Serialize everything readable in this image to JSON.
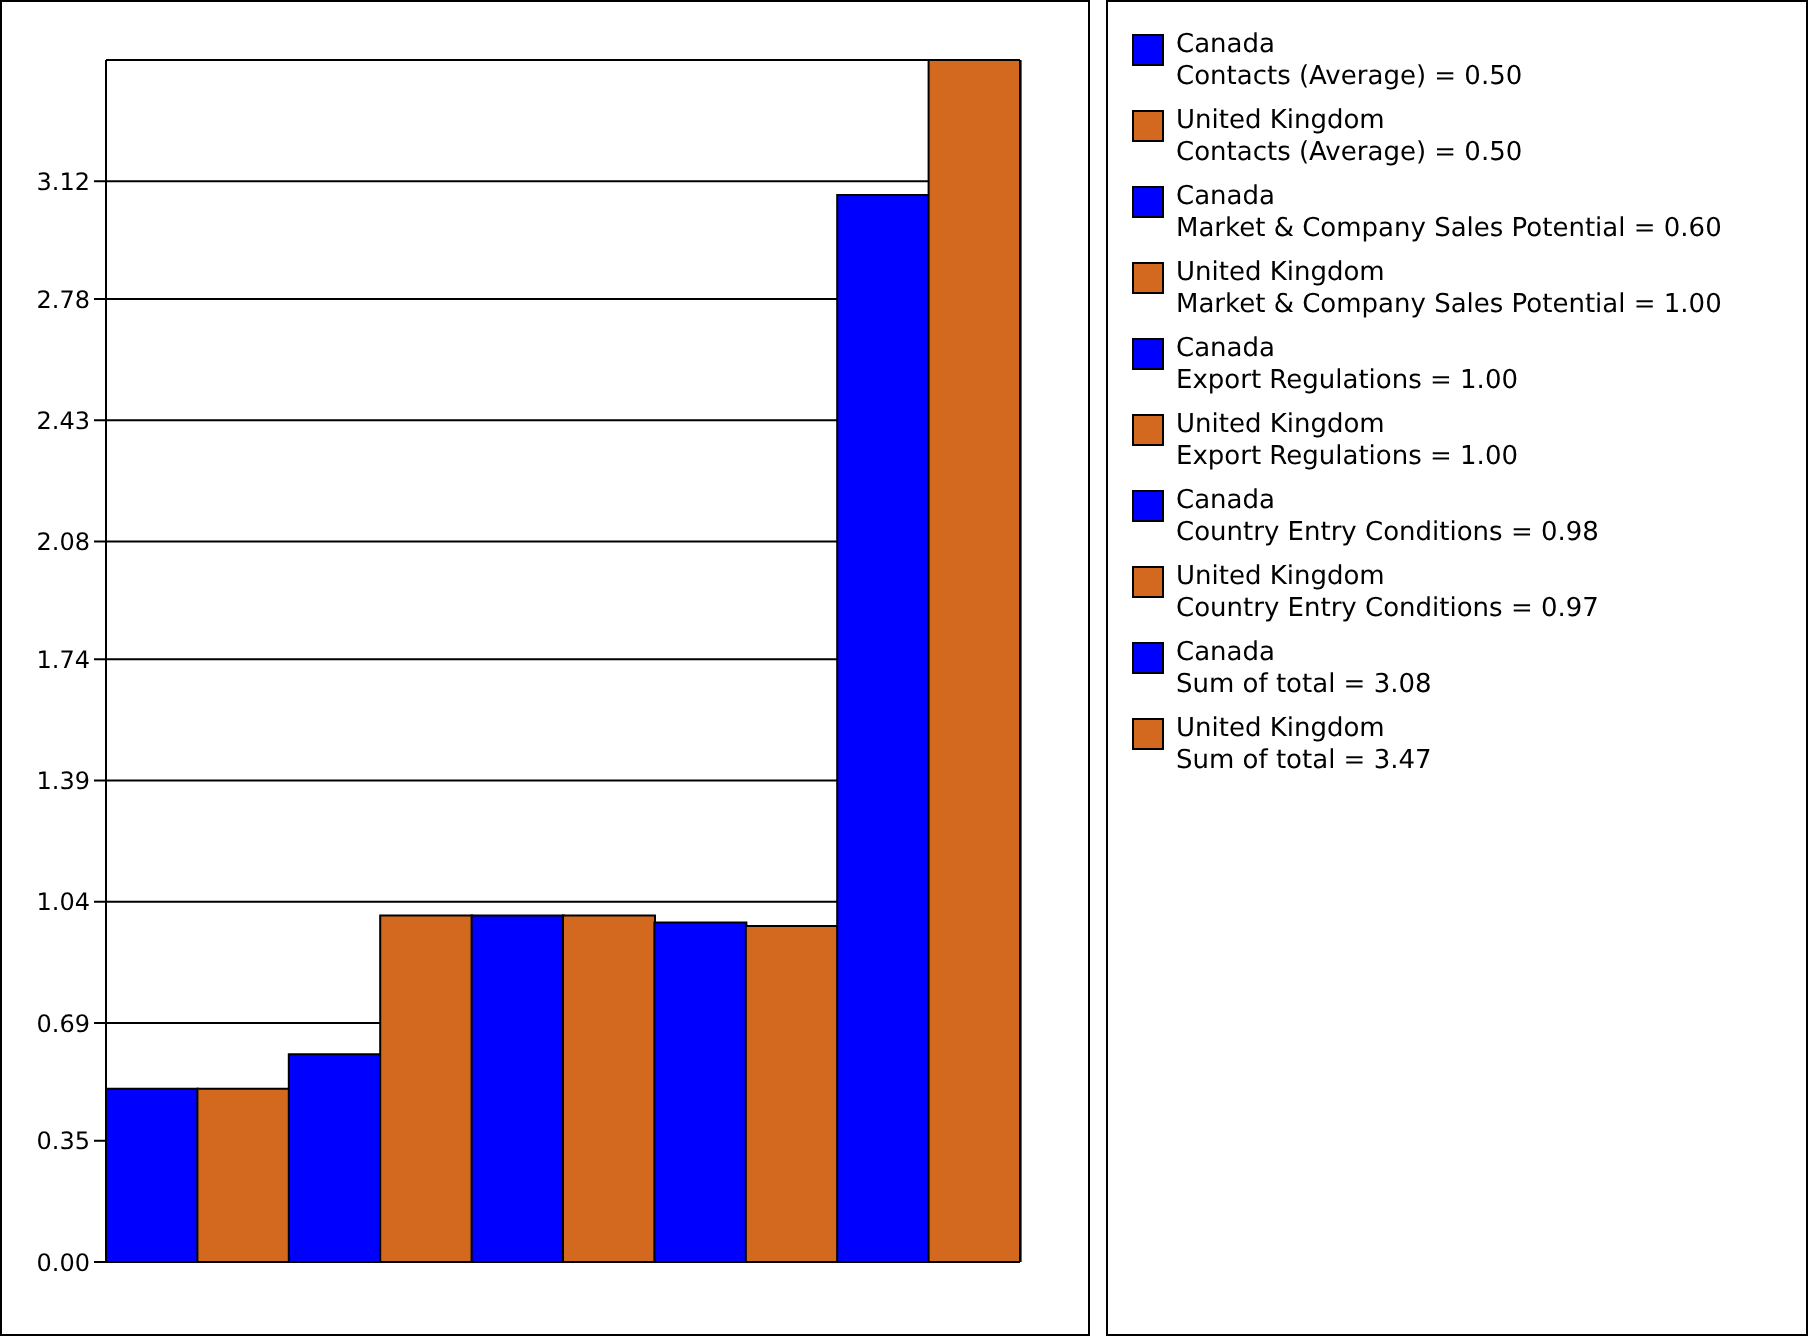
{
  "chart_data": {
    "type": "bar",
    "stacked": true,
    "categories": [
      null,
      null,
      null,
      null,
      null,
      null,
      null,
      null,
      null,
      null
    ],
    "series": [
      {
        "name": "Canada\nContacts (Average) = 0.50",
        "color": "#0000ff",
        "values": [
          0.5,
          null,
          null,
          null,
          null,
          null,
          null,
          null,
          null,
          null
        ]
      },
      {
        "name": "United Kingdom\nContacts (Average) = 0.50",
        "color": "#d2691e",
        "values": [
          null,
          0.5,
          null,
          null,
          null,
          null,
          null,
          null,
          null,
          null
        ]
      },
      {
        "name": "Canada\nMarket & Company Sales Potential = 0.60",
        "color": "#0000ff",
        "values": [
          null,
          null,
          0.6,
          null,
          null,
          null,
          null,
          null,
          null,
          null
        ]
      },
      {
        "name": "United Kingdom\nMarket & Company Sales Potential = 1.00",
        "color": "#d2691e",
        "values": [
          null,
          null,
          null,
          1.0,
          null,
          null,
          null,
          null,
          null,
          null
        ]
      },
      {
        "name": "Canada\nExport Regulations = 1.00",
        "color": "#0000ff",
        "values": [
          null,
          null,
          null,
          null,
          1.0,
          null,
          null,
          null,
          null,
          null
        ]
      },
      {
        "name": "United Kingdom\nExport Regulations = 1.00",
        "color": "#d2691e",
        "values": [
          null,
          null,
          null,
          null,
          null,
          1.0,
          null,
          null,
          null,
          null
        ]
      },
      {
        "name": "Canada\nCountry Entry Conditions = 0.98",
        "color": "#0000ff",
        "values": [
          null,
          null,
          null,
          null,
          null,
          null,
          0.98,
          null,
          null,
          null
        ]
      },
      {
        "name": "United Kingdom\nCountry Entry Conditions = 0.97",
        "color": "#d2691e",
        "values": [
          null,
          null,
          null,
          null,
          null,
          null,
          null,
          0.97,
          null,
          null
        ]
      },
      {
        "name": "Canada\nSum of total = 3.08",
        "color": "#0000ff",
        "values": [
          null,
          null,
          null,
          null,
          null,
          null,
          null,
          null,
          3.08,
          null
        ]
      },
      {
        "name": "United Kingdom\nSum of total = 3.47",
        "color": "#d2691e",
        "values": [
          null,
          null,
          null,
          null,
          null,
          null,
          null,
          null,
          null,
          3.47
        ]
      }
    ],
    "ylim": [
      0,
      3.47
    ],
    "yticks": [
      {
        "value": 0,
        "label": "0.00"
      },
      0.35,
      0.69,
      1.04,
      1.39,
      1.74,
      2.08,
      2.43,
      2.78,
      3.12
    ],
    "grid": "y",
    "legend": "right",
    "tick_labels": "y"
  }
}
